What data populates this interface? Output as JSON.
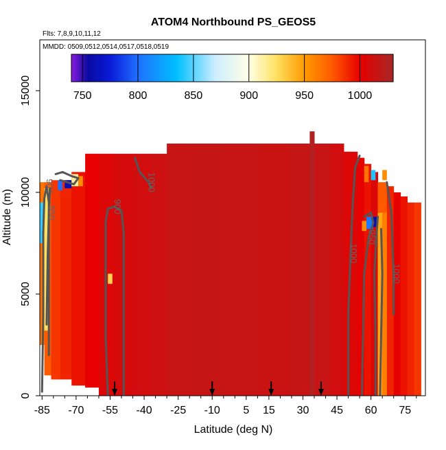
{
  "chart_data": {
    "type": "heatmap",
    "title": "ATOM4 Northbound PS_GEOS5",
    "subtitle_flights": "Flts: 7,8,9,10,11,12",
    "subtitle_dates": "MMDD: 0509,0512,0514,0517,0518,0519",
    "xlabel": "Latitude (deg N)",
    "ylabel": "Altitude (m)",
    "xlim": [
      -86,
      84
    ],
    "ylim": [
      0,
      17500
    ],
    "x_ticks": [
      -85,
      -70,
      -55,
      -40,
      -25,
      -10,
      5,
      15,
      30,
      45,
      60,
      75
    ],
    "x_tick_labels": [
      "-85",
      "-70",
      "-55",
      "-40",
      "-25",
      "-10",
      "5",
      "15",
      "30",
      "45",
      "60",
      "75"
    ],
    "x_minor_ticks": [
      -80,
      -75,
      -65,
      -60,
      -50,
      -45,
      -35,
      -30,
      -20,
      -15,
      -5,
      0,
      10,
      20,
      25,
      35,
      40,
      50,
      55,
      65,
      70,
      80
    ],
    "y_ticks": [
      0,
      5000,
      10000,
      15000
    ],
    "y_tick_labels": [
      "0",
      "5000",
      "10000",
      "15000"
    ],
    "colorbar": {
      "min": 740,
      "max": 1030,
      "ticks": [
        750,
        800,
        850,
        900,
        950,
        1000
      ],
      "tick_labels": [
        "750",
        "800",
        "850",
        "900",
        "950",
        "1000"
      ],
      "stops": [
        {
          "v": 740,
          "c": "#8a1be0"
        },
        {
          "v": 755,
          "c": "#0a0aa0"
        },
        {
          "v": 775,
          "c": "#0a1ad8"
        },
        {
          "v": 800,
          "c": "#2070ff"
        },
        {
          "v": 835,
          "c": "#00bfff"
        },
        {
          "v": 870,
          "c": "#cfeeff"
        },
        {
          "v": 900,
          "c": "#ffffe6"
        },
        {
          "v": 925,
          "c": "#ffe060"
        },
        {
          "v": 950,
          "c": "#ff9a00"
        },
        {
          "v": 975,
          "c": "#ff5a00"
        },
        {
          "v": 1000,
          "c": "#e60000"
        },
        {
          "v": 1030,
          "c": "#a82828"
        }
      ]
    },
    "columns": [
      {
        "x0": -86,
        "x1": -84,
        "top": 10500,
        "bottom": 2500,
        "p": 965
      },
      {
        "x0": -84,
        "x1": -81,
        "top": 10500,
        "bottom": 1000,
        "p": 975
      },
      {
        "x0": -81,
        "x1": -77,
        "top": 10600,
        "bottom": 800,
        "p": 985
      },
      {
        "x0": -77,
        "x1": -72,
        "top": 10600,
        "bottom": 800,
        "p": 990
      },
      {
        "x0": -72,
        "x1": -66,
        "top": 11000,
        "bottom": 500,
        "p": 995
      },
      {
        "x0": -66,
        "x1": -60,
        "top": 11900,
        "bottom": 400,
        "p": 1000
      },
      {
        "x0": -60,
        "x1": -53,
        "top": 11900,
        "bottom": 0,
        "p": 1005
      },
      {
        "x0": -53,
        "x1": -45,
        "top": 11900,
        "bottom": 0,
        "p": 1008
      },
      {
        "x0": -45,
        "x1": -37,
        "top": 11900,
        "bottom": 0,
        "p": 1010
      },
      {
        "x0": -37,
        "x1": -30,
        "top": 11900,
        "bottom": 0,
        "p": 1012
      },
      {
        "x0": -30,
        "x1": -20,
        "top": 12400,
        "bottom": 0,
        "p": 1015
      },
      {
        "x0": -20,
        "x1": -5,
        "top": 12400,
        "bottom": 0,
        "p": 1016
      },
      {
        "x0": -5,
        "x1": 10,
        "top": 12400,
        "bottom": 0,
        "p": 1015
      },
      {
        "x0": 10,
        "x1": 24,
        "top": 12400,
        "bottom": 0,
        "p": 1014
      },
      {
        "x0": 24,
        "x1": 33,
        "top": 12400,
        "bottom": 0,
        "p": 1016
      },
      {
        "x0": 33,
        "x1": 35,
        "top": 13000,
        "bottom": 0,
        "p": 1025
      },
      {
        "x0": 35,
        "x1": 42,
        "top": 12400,
        "bottom": 0,
        "p": 1015
      },
      {
        "x0": 42,
        "x1": 48,
        "top": 12400,
        "bottom": 0,
        "p": 1010
      },
      {
        "x0": 48,
        "x1": 54,
        "top": 12000,
        "bottom": 0,
        "p": 1005
      },
      {
        "x0": 54,
        "x1": 57,
        "top": 11700,
        "bottom": 0,
        "p": 1000
      },
      {
        "x0": 57,
        "x1": 60,
        "top": 11400,
        "bottom": 0,
        "p": 995
      },
      {
        "x0": 60,
        "x1": 63,
        "top": 11000,
        "bottom": 0,
        "p": 1005
      },
      {
        "x0": 63,
        "x1": 67,
        "top": 10500,
        "bottom": 0,
        "p": 975
      },
      {
        "x0": 67,
        "x1": 70,
        "top": 10300,
        "bottom": 0,
        "p": 990
      },
      {
        "x0": 70,
        "x1": 73,
        "top": 10000,
        "bottom": 0,
        "p": 1000
      },
      {
        "x0": 73,
        "x1": 76,
        "top": 9800,
        "bottom": 0,
        "p": 995
      },
      {
        "x0": 76,
        "x1": 79,
        "top": 9500,
        "bottom": 0,
        "p": 990
      },
      {
        "x0": 79,
        "x1": 82,
        "top": 9500,
        "bottom": 0,
        "p": 985
      }
    ],
    "patches": [
      {
        "x0": -86,
        "x1": -84,
        "y0": 7500,
        "y1": 9500,
        "p": 845
      },
      {
        "x0": -84,
        "x1": -82,
        "y0": 3200,
        "y1": 10200,
        "p": 925
      },
      {
        "x0": -78,
        "x1": -76,
        "y0": 10100,
        "y1": 10600,
        "p": 800
      },
      {
        "x0": -75,
        "x1": -72,
        "y0": 10200,
        "y1": 10600,
        "p": 760
      },
      {
        "x0": -72,
        "x1": -69,
        "y0": 10300,
        "y1": 10900,
        "p": 915
      },
      {
        "x0": -69,
        "x1": -67,
        "y0": 10300,
        "y1": 10800,
        "p": 955
      },
      {
        "x0": -56,
        "x1": -54,
        "y0": 5500,
        "y1": 6000,
        "p": 930
      },
      {
        "x0": 56,
        "x1": 58,
        "y0": 8100,
        "y1": 8600,
        "p": 955
      },
      {
        "x0": 58,
        "x1": 61,
        "y0": 8200,
        "y1": 8800,
        "p": 805
      },
      {
        "x0": 61,
        "x1": 63,
        "y0": 8300,
        "y1": 8800,
        "p": 760
      },
      {
        "x0": 63,
        "x1": 65,
        "y0": 0,
        "y1": 9000,
        "p": 945
      },
      {
        "x0": 65,
        "x1": 67,
        "y0": 0,
        "y1": 9000,
        "p": 960
      },
      {
        "x0": 57,
        "x1": 59,
        "y0": 10500,
        "y1": 11300,
        "p": 965
      },
      {
        "x0": 60,
        "x1": 62,
        "y0": 10600,
        "y1": 11100,
        "p": 840
      },
      {
        "x0": 65,
        "x1": 67,
        "y0": 10600,
        "y1": 11100,
        "p": 955
      }
    ],
    "contours": [
      {
        "label": "900",
        "points": [
          [
            -85,
            200
          ],
          [
            -84.5,
            4000
          ],
          [
            -84.5,
            8000
          ],
          [
            -84,
            9700
          ],
          [
            -83,
            10300
          ],
          [
            -82,
            9500
          ],
          [
            -82,
            6000
          ],
          [
            -82,
            2000
          ]
        ]
      },
      {
        "label": "850",
        "points": [
          [
            -83,
            3500
          ],
          [
            -82.5,
            7000
          ],
          [
            -82,
            9000
          ],
          [
            -81.5,
            10200
          ]
        ]
      },
      {
        "label": "",
        "points": [
          [
            -79,
            10900
          ],
          [
            -76,
            11000
          ],
          [
            -72,
            10800
          ],
          [
            -69,
            10700
          ],
          [
            -71,
            10400
          ],
          [
            -74,
            10500
          ],
          [
            -77,
            10600
          ]
        ]
      },
      {
        "label": "900",
        "points": [
          [
            -56,
            0
          ],
          [
            -57,
            3000
          ],
          [
            -57,
            6000
          ],
          [
            -57,
            8500
          ],
          [
            -56,
            9200
          ],
          [
            -53,
            9300
          ],
          [
            -50,
            9100
          ],
          [
            -49,
            8000
          ],
          [
            -49,
            5000
          ],
          [
            -49,
            0
          ]
        ]
      },
      {
        "label": "1000",
        "points": [
          [
            -44,
            11700
          ],
          [
            -42,
            11000
          ],
          [
            -38,
            10500
          ],
          [
            -37,
            10200
          ]
        ]
      },
      {
        "label": "1000",
        "points": [
          [
            55,
            11800
          ],
          [
            53,
            11200
          ],
          [
            52,
            9500
          ],
          [
            51,
            7000
          ],
          [
            50,
            4000
          ],
          [
            50,
            0
          ]
        ]
      },
      {
        "label": "950",
        "points": [
          [
            56,
            0
          ],
          [
            56.5,
            3000
          ],
          [
            57,
            6000
          ],
          [
            59,
            7800
          ],
          [
            61,
            8500
          ],
          [
            60,
            9000
          ],
          [
            57,
            8800
          ]
        ]
      },
      {
        "label": "",
        "points": [
          [
            62,
            0
          ],
          [
            62,
            3000
          ],
          [
            61.5,
            6000
          ],
          [
            62.5,
            8000
          ],
          [
            63,
            8800
          ]
        ]
      },
      {
        "label": "",
        "points": [
          [
            64,
            0
          ],
          [
            64.5,
            3000
          ],
          [
            65,
            6000
          ],
          [
            64.5,
            8200
          ]
        ]
      },
      {
        "label": "1000",
        "points": [
          [
            67,
            10500
          ],
          [
            69,
            9000
          ],
          [
            70,
            6000
          ],
          [
            70,
            4000
          ]
        ]
      }
    ],
    "flight_markers": [
      -53,
      -10,
      16,
      38
    ]
  }
}
